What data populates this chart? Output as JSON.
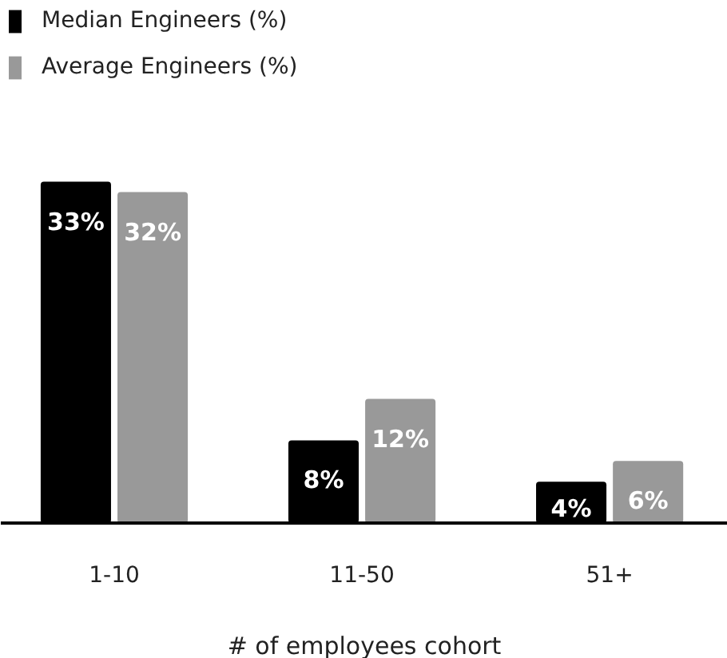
{
  "chart_data": {
    "type": "bar",
    "xlabel": "# of employees cohort",
    "categories": [
      "1-10",
      "11-50",
      "51+"
    ],
    "series": [
      {
        "name": "Median Engineers (%)",
        "color": "#000000",
        "values": [
          33,
          8,
          4
        ],
        "value_labels": [
          "33%",
          "8%",
          "4%"
        ]
      },
      {
        "name": "Average Engineers (%)",
        "color": "#999999",
        "values": [
          32,
          12,
          6
        ],
        "value_labels": [
          "32%",
          "12%",
          "6%"
        ]
      }
    ],
    "legend": "top left",
    "grid": false
  }
}
